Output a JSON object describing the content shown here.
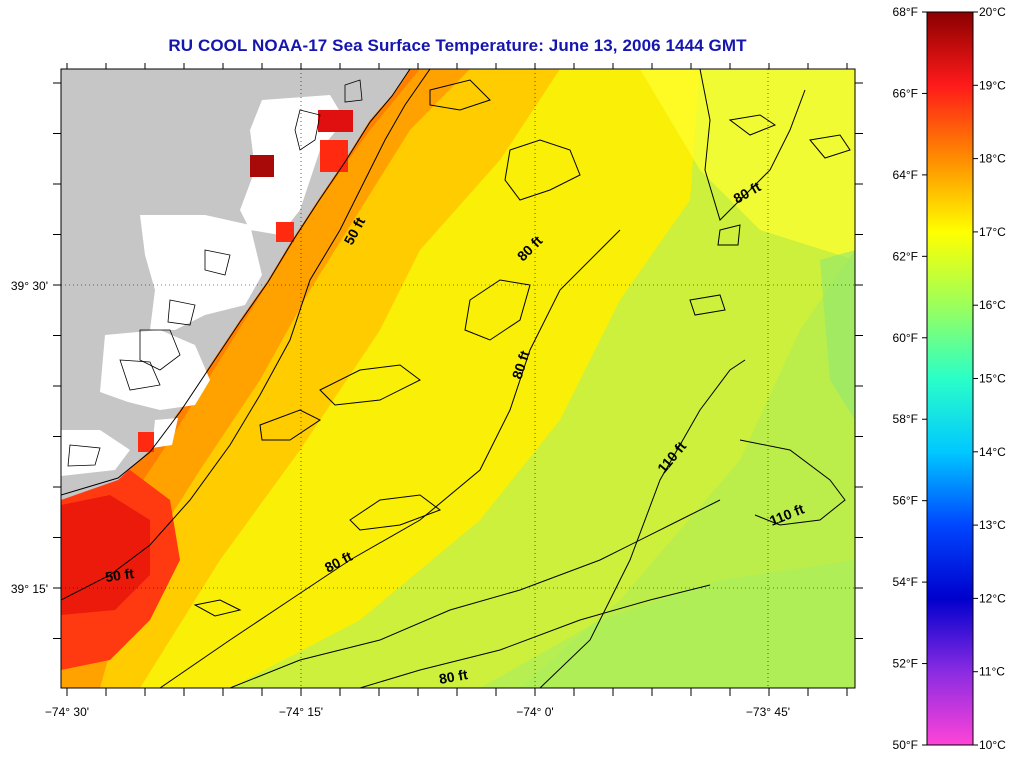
{
  "title": "RU COOL  NOAA-17  Sea Surface Temperature:  June 13, 2006 1444 GMT",
  "colors": {
    "title": "#1515b0",
    "land": "#c6c6c6",
    "cloud": "#ffffff",
    "hot": "#e01010",
    "hotter": "#a80a0a"
  },
  "axes": {
    "x_ticks": [
      {
        "value": -74.5,
        "label": "−74° 30'"
      },
      {
        "value": -74.25,
        "label": "−74° 15'"
      },
      {
        "value": -74.0,
        "label": "−74° 0'"
      },
      {
        "value": -73.75,
        "label": "−73° 45'"
      }
    ],
    "y_ticks": [
      {
        "value": 39.5,
        "label": "39° 30'"
      },
      {
        "value": 39.25,
        "label": "39° 15'"
      }
    ]
  },
  "contour_labels": [
    {
      "text": "50 ft"
    },
    {
      "text": "50 ft"
    },
    {
      "text": "80 ft"
    },
    {
      "text": "80 ft"
    },
    {
      "text": "80 ft"
    },
    {
      "text": "80 ft"
    },
    {
      "text": "80 ft"
    },
    {
      "text": "110 ft"
    },
    {
      "text": "110 ft"
    }
  ],
  "colorbar": {
    "f_labels": [
      "68°F",
      "66°F",
      "64°F",
      "62°F",
      "60°F",
      "58°F",
      "56°F",
      "54°F",
      "52°F",
      "50°F"
    ],
    "c_labels": [
      "20°C",
      "19°C",
      "18°C",
      "17°C",
      "16°C",
      "15°C",
      "14°C",
      "13°C",
      "12°C",
      "11°C",
      "10°C"
    ],
    "c_range": [
      10,
      20
    ],
    "stops": [
      "#8b0000",
      "#ff1a1a",
      "#ff8c00",
      "#ffff00",
      "#9cff5a",
      "#2affc8",
      "#00c8ff",
      "#0046ff",
      "#0000cc",
      "#8a2be2",
      "#ff44d8"
    ]
  }
}
